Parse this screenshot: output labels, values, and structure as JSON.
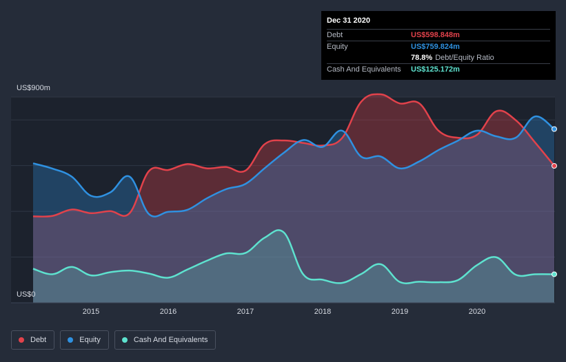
{
  "tooltip": {
    "date": "Dec 31 2020",
    "rows": {
      "debt": {
        "label": "Debt",
        "value": "US$598.848m"
      },
      "equity": {
        "label": "Equity",
        "value": "US$759.824m"
      },
      "ratio": {
        "value": "78.8%",
        "label": "Debt/Equity Ratio"
      },
      "cash": {
        "label": "Cash And Equivalents",
        "value": "US$125.172m"
      }
    }
  },
  "colors": {
    "debt": "#e2424b",
    "equity": "#2f91e1",
    "cash": "#5ee2cf",
    "background": "#252c39",
    "plot": "#1c222d"
  },
  "legend": {
    "items": [
      {
        "key": "debt",
        "label": "Debt"
      },
      {
        "key": "equity",
        "label": "Equity"
      },
      {
        "key": "cash",
        "label": "Cash And Equivalents"
      }
    ]
  },
  "chart_data": {
    "type": "area",
    "title": "",
    "xlabel": "",
    "ylabel": "",
    "ylim": [
      0,
      900
    ],
    "xlim": [
      2014.25,
      2021.0
    ],
    "y_axis_labels": {
      "top": "US$900m",
      "bottom": "US$0"
    },
    "x_ticks": [
      "2015",
      "2016",
      "2017",
      "2018",
      "2019",
      "2020"
    ],
    "x_tick_values": [
      2015,
      2016,
      2017,
      2018,
      2019,
      2020
    ],
    "legend_position": "bottom-left",
    "series": [
      {
        "name": "Debt",
        "key": "debt",
        "x": [
          2014.25,
          2014.5,
          2014.75,
          2015.0,
          2015.25,
          2015.5,
          2015.75,
          2016.0,
          2016.25,
          2016.5,
          2016.75,
          2017.0,
          2017.25,
          2017.5,
          2017.75,
          2018.0,
          2018.25,
          2018.5,
          2018.75,
          2019.0,
          2019.25,
          2019.5,
          2019.75,
          2020.0,
          2020.25,
          2020.5,
          2020.75,
          2021.0
        ],
        "values": [
          378,
          380,
          408,
          392,
          401,
          392,
          576,
          581,
          607,
          588,
          594,
          578,
          694,
          710,
          699,
          688,
          720,
          880,
          912,
          872,
          873,
          753,
          722,
          735,
          838,
          799,
          702,
          599
        ]
      },
      {
        "name": "Equity",
        "key": "equity",
        "x": [
          2014.25,
          2014.5,
          2014.75,
          2015.0,
          2015.25,
          2015.5,
          2015.75,
          2016.0,
          2016.25,
          2016.5,
          2016.75,
          2017.0,
          2017.25,
          2017.5,
          2017.75,
          2018.0,
          2018.25,
          2018.5,
          2018.75,
          2019.0,
          2019.25,
          2019.5,
          2019.75,
          2020.0,
          2020.25,
          2020.5,
          2020.75,
          2021.0
        ],
        "values": [
          610,
          587,
          552,
          468,
          483,
          552,
          388,
          398,
          407,
          457,
          497,
          520,
          589,
          657,
          712,
          682,
          753,
          639,
          640,
          588,
          618,
          668,
          709,
          753,
          728,
          722,
          815,
          760
        ]
      },
      {
        "name": "Cash And Equivalents",
        "key": "cash",
        "x": [
          2014.25,
          2014.5,
          2014.75,
          2015.0,
          2015.25,
          2015.5,
          2015.75,
          2016.0,
          2016.25,
          2016.5,
          2016.75,
          2017.0,
          2017.25,
          2017.5,
          2017.75,
          2018.0,
          2018.25,
          2018.5,
          2018.75,
          2019.0,
          2019.25,
          2019.5,
          2019.75,
          2020.0,
          2020.25,
          2020.5,
          2020.75,
          2021.0
        ],
        "values": [
          149,
          125,
          157,
          120,
          134,
          141,
          128,
          110,
          146,
          184,
          216,
          218,
          285,
          307,
          124,
          101,
          87,
          126,
          169,
          91,
          92,
          90,
          99,
          165,
          199,
          123,
          125,
          125
        ]
      }
    ]
  }
}
